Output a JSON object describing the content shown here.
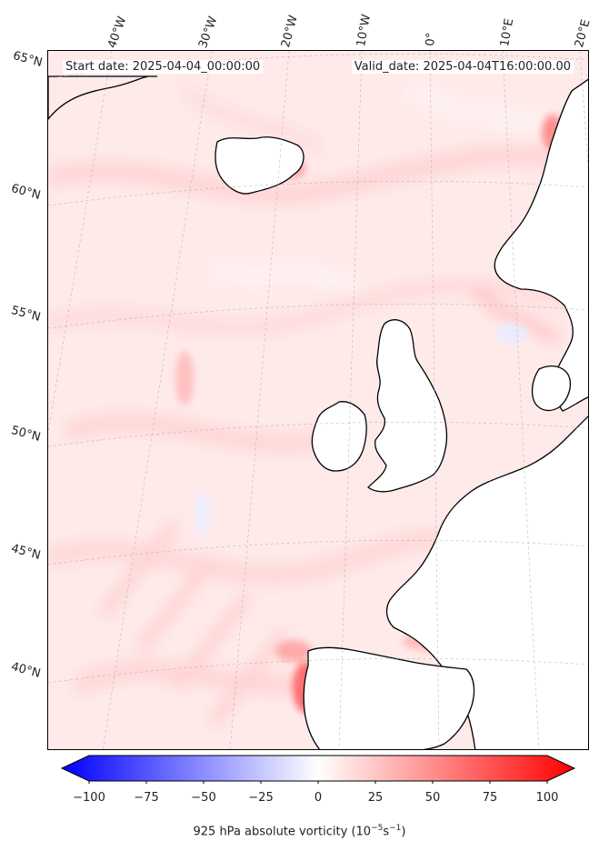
{
  "map": {
    "projection_labels": {
      "lon": [
        "40°W",
        "30°W",
        "20°W",
        "10°W",
        "0°",
        "10°E",
        "20°E"
      ],
      "lat": [
        "65°N",
        "60°N",
        "55°N",
        "50°N",
        "45°N",
        "40°N"
      ]
    },
    "start_date_label": "Start date: 2025-04-04_00:00:00",
    "valid_date_label": "Valid_date: 2025-04-04T16:00:00.00",
    "field": "925 hPa absolute vorticity",
    "background_color": "#ffeaea",
    "land_color": "#ffffff",
    "coastline_color": "#000000"
  },
  "colorbar": {
    "ticks": [
      "−100",
      "−75",
      "−50",
      "−25",
      "0",
      "25",
      "50",
      "75",
      "100"
    ],
    "label_main": "925 hPa absolute vorticity (10",
    "label_exp1": "−5",
    "label_mid": "s",
    "label_exp2": "−1",
    "label_end": ")",
    "min_color": "#0000ff",
    "mid_color": "#ffffff",
    "max_color": "#ff0000",
    "vmin": -100,
    "vmax": 100
  }
}
